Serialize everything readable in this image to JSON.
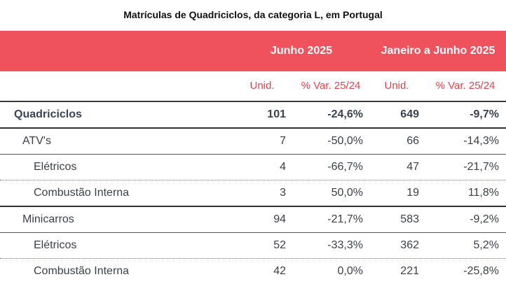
{
  "title": "Matrículas de Quadriciclos, da categoria L, em Portugal",
  "periods": [
    "Junho 2025",
    "Janeiro a Junho 2025"
  ],
  "columns": [
    "Unid.",
    "% Var. 25/24",
    "Unid.",
    "% Var. 25/24"
  ],
  "rows": [
    {
      "label": "Quadriciclos",
      "values": [
        "101",
        "-24,6%",
        "649",
        "-9,7%"
      ]
    },
    {
      "label": "ATV's",
      "values": [
        "7",
        "-50,0%",
        "66",
        "-14,3%"
      ]
    },
    {
      "label": "Elétricos",
      "values": [
        "4",
        "-66,7%",
        "47",
        "-21,7%"
      ]
    },
    {
      "label": "Combustão Interna",
      "values": [
        "3",
        "50,0%",
        "19",
        "11,8%"
      ]
    },
    {
      "label": "Minicarros",
      "values": [
        "94",
        "-21,7%",
        "583",
        "-9,2%"
      ]
    },
    {
      "label": "Elétricos",
      "values": [
        "52",
        "-33,3%",
        "362",
        "5,2%"
      ]
    },
    {
      "label": "Combustão Interna",
      "values": [
        "42",
        "0,0%",
        "221",
        "-25,8%"
      ]
    }
  ],
  "colors": {
    "header_band": "#f0525d",
    "subheader_text": "#e5414d",
    "text": "#3b3f4a"
  }
}
